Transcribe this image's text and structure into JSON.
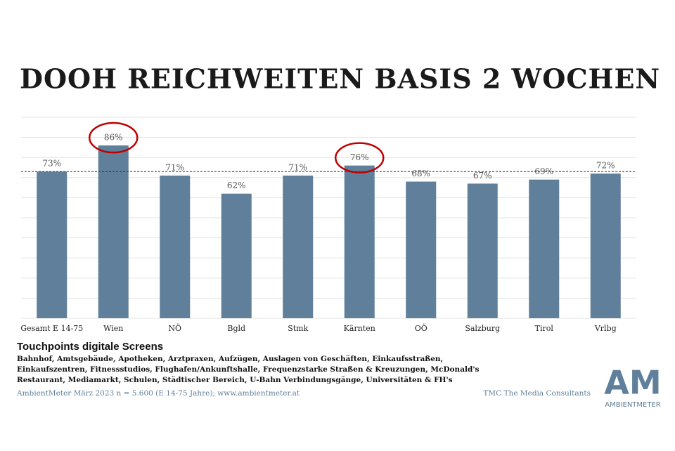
{
  "chart_data": {
    "type": "bar",
    "title": "DOOH REICHWEITEN BASIS 2 WOCHEN",
    "categories": [
      "Gesamt E 14-75",
      "Wien",
      "NÖ",
      "Bgld",
      "Stmk",
      "Kärnten",
      "OÖ",
      "Salzburg",
      "Tirol",
      "Vrlbg"
    ],
    "values": [
      73,
      86,
      71,
      62,
      71,
      76,
      68,
      67,
      69,
      72
    ],
    "value_labels": [
      "73%",
      "86%",
      "71%",
      "62%",
      "71%",
      "76%",
      "68%",
      "67%",
      "69%",
      "72%"
    ],
    "color": "#5f7f9a",
    "ylim": [
      0,
      100
    ],
    "yticks": [
      0,
      10,
      20,
      30,
      40,
      50,
      60,
      70,
      80,
      90,
      100
    ],
    "grid": true,
    "highlighted": [
      1,
      5
    ]
  },
  "notes": {
    "heading": "Touchpoints digitale Screens",
    "description_lines": [
      "Bahnhof, Amtsgebäude, Apotheken, Arztpraxen, Aufzügen, Auslagen von Geschäften, Einkaufsstraßen,",
      "Einkaufszentren, Fitnessstudios, Flughafen/Ankunftshalle, Frequenzstarke Straßen & Kreuzungen, McDonald's",
      "Restaurant, Mediamarkt, Schulen, Städtischer Bereich, U-Bahn Verbindungsgänge, Universitäten & FH's"
    ],
    "source": "AmbientMeter März 2023 n = 5.600 (E 14-75 Jahre); www.ambientmeter.at",
    "company": "TMC The Media Consultants"
  },
  "logo": {
    "mark": "AM",
    "text": "AMBIENTMETER"
  }
}
